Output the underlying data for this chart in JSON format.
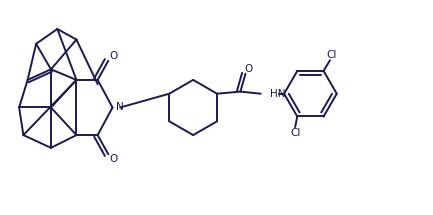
{
  "bg_color": "#ffffff",
  "line_color": "#1a1a4e",
  "text_color": "#1a1a4e",
  "lw": 1.4,
  "figsize": [
    4.33,
    2.15
  ],
  "dpi": 100,
  "xlim": [
    0,
    10
  ],
  "ylim": [
    0,
    5
  ]
}
